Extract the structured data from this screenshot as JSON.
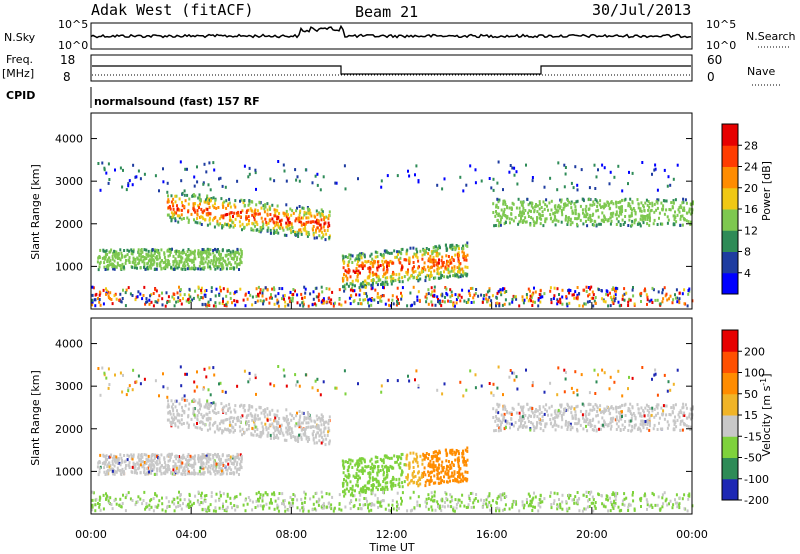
{
  "header": {
    "station": "Adak West (fitACF)",
    "beam": "Beam 21",
    "date": "30/Jul/2013"
  },
  "top_panels": {
    "nsky_label": "N.Sky",
    "nsky_ticks": [
      "10^5",
      "10^0"
    ],
    "nsearch_label": "N.Search",
    "nsearch_ticks": [
      "10^5",
      "10^0"
    ],
    "freq_label": "Freq.",
    "freq_unit": "[MHz]",
    "freq_ticks": [
      "18",
      "8"
    ],
    "nave_label": "Nave",
    "nave_ticks": [
      "60",
      "0"
    ],
    "cpid_label": "CPID",
    "cpid_text": "normalsound (fast) 157 RF"
  },
  "chart_data": [
    {
      "type": "heatmap",
      "panel": "power",
      "ylabel": "Slant Range [km]",
      "yticks": [
        1000,
        2000,
        3000,
        4000
      ],
      "ylim": [
        0,
        4600
      ],
      "xticks": [
        "00:00",
        "04:00",
        "08:00",
        "12:00",
        "16:00",
        "20:00",
        "00:00"
      ],
      "colorbar": {
        "label": "Power [dB]",
        "ticks": [
          4,
          8,
          12,
          16,
          20,
          24,
          28
        ],
        "range": [
          0,
          30
        ],
        "colors": [
          "#0000ff",
          "#1e3ca0",
          "#2e8b57",
          "#7ec850",
          "#f0c814",
          "#ff8c00",
          "#ff3c00",
          "#e60000"
        ]
      },
      "echo_regions": [
        {
          "t0": 0.2,
          "t1": 6.0,
          "r0": 900,
          "r1": 1500
        },
        {
          "t0": 3.0,
          "t1": 9.5,
          "r0": 1800,
          "r1": 2700
        },
        {
          "t0": 10.0,
          "t1": 15.0,
          "r0": 600,
          "r1": 1600
        },
        {
          "t0": 16.0,
          "t1": 24.0,
          "r0": 1900,
          "r1": 2700
        }
      ]
    },
    {
      "type": "heatmap",
      "panel": "velocity",
      "ylabel": "Slant Range [km]",
      "yticks": [
        1000,
        2000,
        3000,
        4000
      ],
      "ylim": [
        0,
        4600
      ],
      "xticks": [
        "00:00",
        "04:00",
        "08:00",
        "12:00",
        "16:00",
        "20:00",
        "00:00"
      ],
      "xlabel": "Time UT",
      "colorbar": {
        "label": "Velocity [m s-1]",
        "ticks": [
          200,
          100,
          50,
          15,
          -15,
          -50,
          -100,
          -200
        ],
        "colors": [
          "#1e28b4",
          "#2e8b57",
          "#7ed23c",
          "#c8c8c8",
          "#f0b428",
          "#ff8c00",
          "#ff5000",
          "#e60000"
        ]
      }
    }
  ],
  "colors": {
    "power_scale": [
      "#0000ff",
      "#1e3ca0",
      "#2e8b57",
      "#7ec850",
      "#f0c814",
      "#ff8c00",
      "#ff3c00",
      "#e60000"
    ],
    "velocity_scale": [
      "#1e28b4",
      "#2e8b57",
      "#7ed23c",
      "#c8c8c8",
      "#f0b428",
      "#ff8c00",
      "#ff5000",
      "#e60000"
    ]
  }
}
